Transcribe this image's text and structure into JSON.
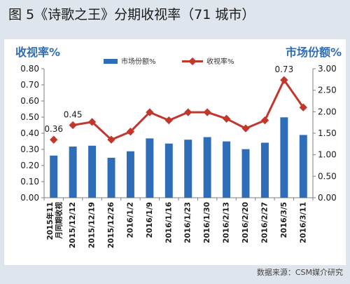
{
  "figure": {
    "title": "图 5《诗歌之王》分期收视率（71 城市）",
    "source": "数据来源：CSM媒介研究"
  },
  "chart_data": {
    "type": "bar",
    "categories": [
      "2015年11\n月同期收视",
      "2015/12/12",
      "2015/12/19",
      "2015/12/26",
      "2016/1/2",
      "2016/1/9",
      "2016/1/16",
      "2016/1/23",
      "2016/1/30",
      "2016/2/13",
      "2016/2/20",
      "2016/2/27",
      "2016/3/5",
      "2016/3/11"
    ],
    "left_axis": {
      "label": "收视率%",
      "ylim": [
        0,
        0.8
      ],
      "ticks": [
        "0.00",
        "0.10",
        "0.20",
        "0.30",
        "0.40",
        "0.50",
        "0.60",
        "0.70",
        "0.80"
      ]
    },
    "right_axis": {
      "label": "市场份额%",
      "ylim": [
        0,
        3
      ],
      "ticks": [
        "0.00",
        "0.50",
        "1.00",
        "1.50",
        "2.00",
        "2.50",
        "3.00"
      ]
    },
    "series": [
      {
        "name": "市场份额%",
        "type": "bar",
        "axis": "right",
        "color": "#2e6db8",
        "values": [
          0.98,
          1.19,
          1.21,
          0.93,
          1.08,
          1.38,
          1.26,
          1.35,
          1.41,
          1.31,
          1.13,
          1.28,
          1.87,
          1.46
        ]
      },
      {
        "name": "收视率%",
        "type": "line",
        "axis": "left",
        "color": "#c2372c",
        "values": [
          0.36,
          0.45,
          0.47,
          0.36,
          0.41,
          0.53,
          0.48,
          0.53,
          0.53,
          0.49,
          0.43,
          0.48,
          0.73,
          0.56
        ],
        "connect_from_index": 1
      }
    ],
    "data_labels": [
      {
        "index": 0,
        "text": "0.36"
      },
      {
        "index": 1,
        "text": "0.45"
      },
      {
        "index": 12,
        "text": "0.73"
      }
    ],
    "legend": "top-center",
    "grid": false,
    "colors": {
      "axis_label": "#2e6db8",
      "bar": "#2e6db8",
      "line": "#c2372c",
      "panel": "#ffffff",
      "background": "#dfe5ec"
    }
  }
}
